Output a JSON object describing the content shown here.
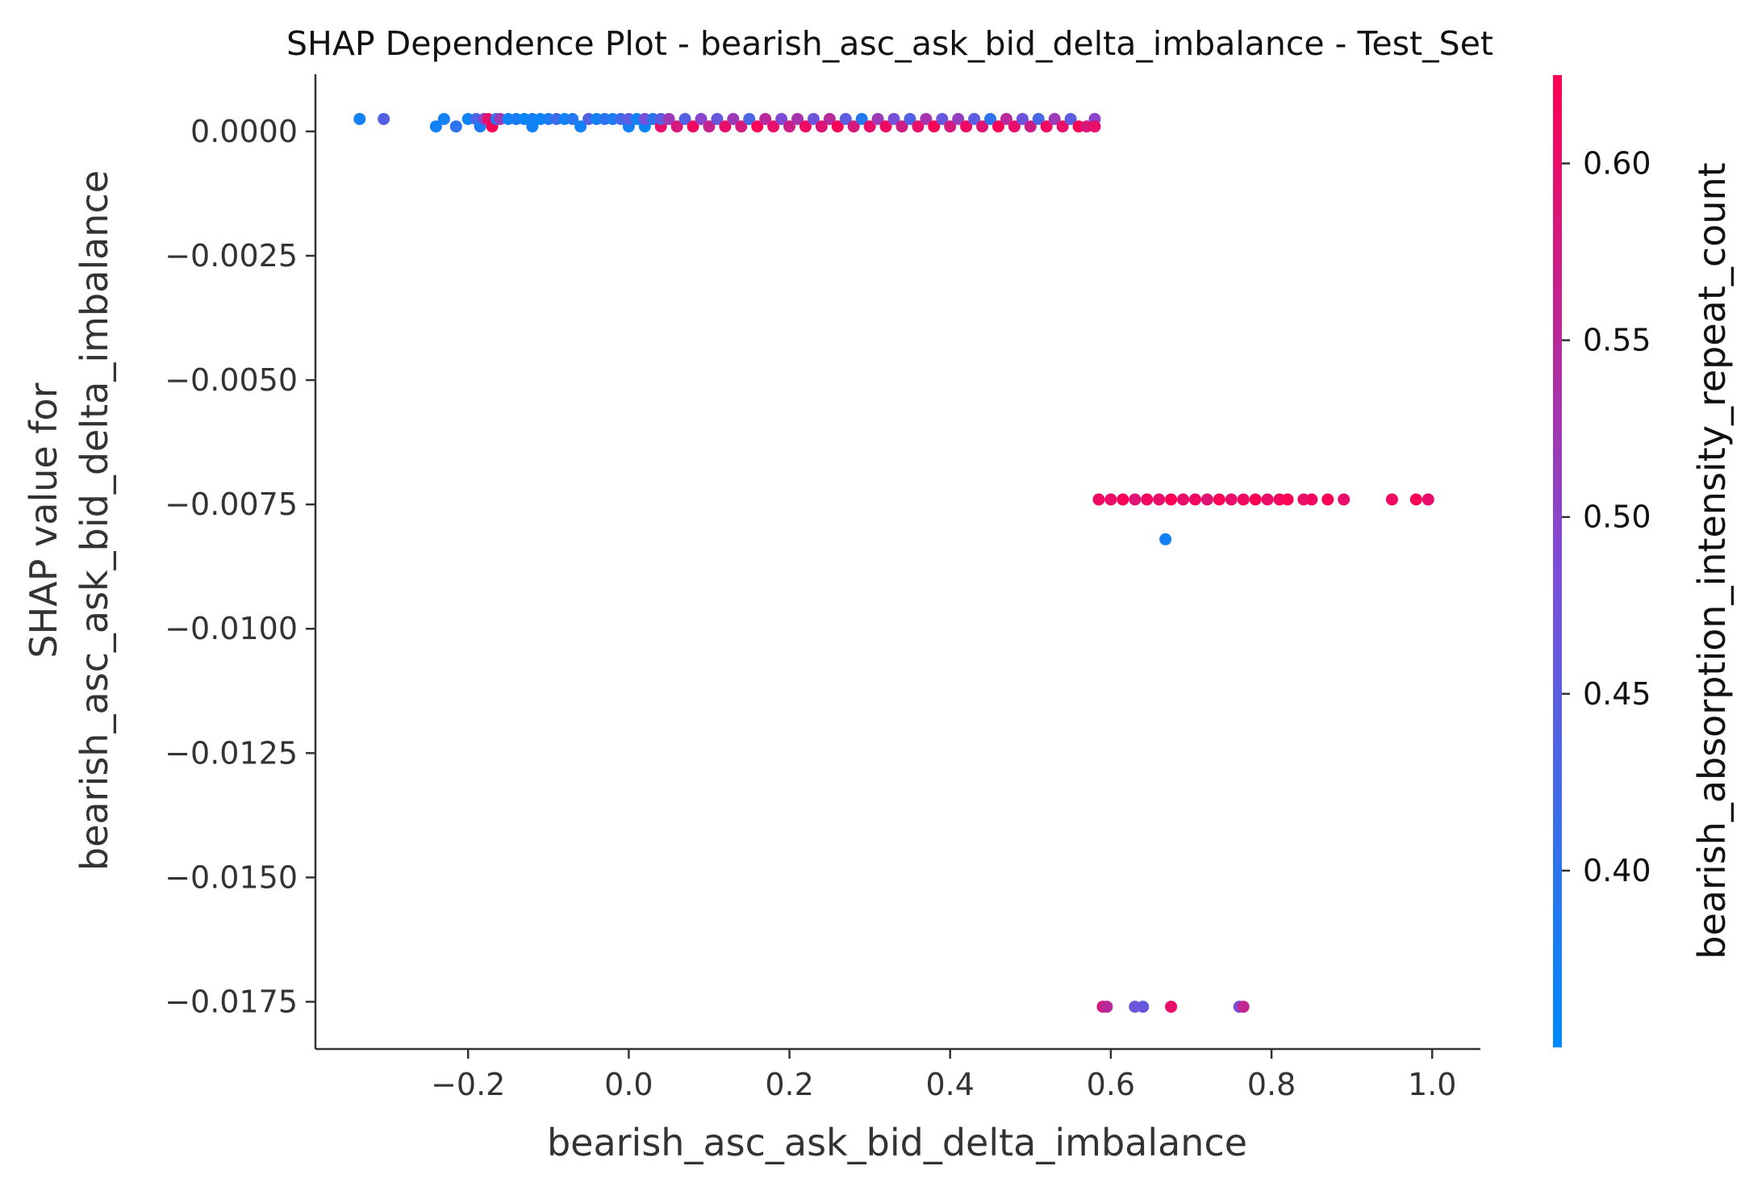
{
  "chart_data": {
    "type": "scatter",
    "title": "SHAP Dependence Plot - bearish_asc_ask_bid_delta_imbalance - Test_Set",
    "xlabel": "bearish_asc_ask_bid_delta_imbalance",
    "ylabel_lines": [
      "SHAP value for",
      "bearish_asc_ask_bid_delta_imbalance"
    ],
    "xlim": [
      -0.39,
      1.06
    ],
    "ylim": [
      -0.01845,
      0.00115
    ],
    "x_ticks": [
      -0.2,
      0.0,
      0.2,
      0.4,
      0.6,
      0.8,
      1.0
    ],
    "x_tick_labels": [
      "−0.2",
      "0.0",
      "0.2",
      "0.4",
      "0.6",
      "0.8",
      "1.0"
    ],
    "y_ticks": [
      0.0,
      -0.0025,
      -0.005,
      -0.0075,
      -0.01,
      -0.0125,
      -0.015,
      -0.0175
    ],
    "y_tick_labels": [
      "0.0000",
      "−0.0025",
      "−0.0050",
      "−0.0075",
      "−0.0100",
      "−0.0125",
      "−0.0150",
      "−0.0175"
    ],
    "grid": false,
    "colorbar": {
      "label": "bearish_absorption_intensity_repeat_count",
      "range": [
        0.35,
        0.625
      ],
      "ticks": [
        0.4,
        0.45,
        0.5,
        0.55,
        0.6
      ],
      "tick_labels": [
        "0.40",
        "0.45",
        "0.50",
        "0.55",
        "0.60"
      ],
      "color_low": "#008afb",
      "color_mid": "#7e4cd6",
      "color_high": "#ff0052"
    },
    "series": [
      {
        "points": [
          {
            "x": -0.335,
            "y": 0.00025,
            "c": 0.37
          },
          {
            "x": -0.305,
            "y": 0.00025,
            "c": 0.44
          },
          {
            "x": -0.24,
            "y": 0.0001,
            "c": 0.37
          },
          {
            "x": -0.23,
            "y": 0.00025,
            "c": 0.37
          },
          {
            "x": -0.215,
            "y": 0.0001,
            "c": 0.4
          },
          {
            "x": -0.2,
            "y": 0.00025,
            "c": 0.36
          },
          {
            "x": -0.19,
            "y": 0.00025,
            "c": 0.43
          },
          {
            "x": -0.185,
            "y": 0.0001,
            "c": 0.38
          },
          {
            "x": -0.18,
            "y": 0.00025,
            "c": 0.5
          },
          {
            "x": -0.175,
            "y": 0.00025,
            "c": 0.6
          },
          {
            "x": -0.17,
            "y": 0.0001,
            "c": 0.62
          },
          {
            "x": -0.165,
            "y": 0.00025,
            "c": 0.4
          },
          {
            "x": -0.16,
            "y": 0.00025,
            "c": 0.52
          },
          {
            "x": -0.15,
            "y": 0.00025,
            "c": 0.37
          },
          {
            "x": -0.14,
            "y": 0.00025,
            "c": 0.38
          },
          {
            "x": -0.13,
            "y": 0.00025,
            "c": 0.36
          },
          {
            "x": -0.12,
            "y": 0.00025,
            "c": 0.37
          },
          {
            "x": -0.12,
            "y": 0.0001,
            "c": 0.37
          },
          {
            "x": -0.11,
            "y": 0.00025,
            "c": 0.36
          },
          {
            "x": -0.1,
            "y": 0.00025,
            "c": 0.38
          },
          {
            "x": -0.09,
            "y": 0.00025,
            "c": 0.42
          },
          {
            "x": -0.08,
            "y": 0.00025,
            "c": 0.37
          },
          {
            "x": -0.07,
            "y": 0.00025,
            "c": 0.39
          },
          {
            "x": -0.06,
            "y": 0.0001,
            "c": 0.37
          },
          {
            "x": -0.05,
            "y": 0.00025,
            "c": 0.44
          },
          {
            "x": -0.04,
            "y": 0.00025,
            "c": 0.37
          },
          {
            "x": -0.03,
            "y": 0.00025,
            "c": 0.4
          },
          {
            "x": -0.02,
            "y": 0.00025,
            "c": 0.38
          },
          {
            "x": -0.01,
            "y": 0.00025,
            "c": 0.42
          },
          {
            "x": 0.0,
            "y": 0.0001,
            "c": 0.37
          },
          {
            "x": 0.0,
            "y": 0.00025,
            "c": 0.45
          },
          {
            "x": 0.01,
            "y": 0.00025,
            "c": 0.37
          },
          {
            "x": 0.02,
            "y": 0.0001,
            "c": 0.36
          },
          {
            "x": 0.02,
            "y": 0.00025,
            "c": 0.48
          },
          {
            "x": 0.03,
            "y": 0.00025,
            "c": 0.4
          },
          {
            "x": 0.04,
            "y": 0.0001,
            "c": 0.6
          },
          {
            "x": 0.04,
            "y": 0.00025,
            "c": 0.45
          },
          {
            "x": 0.05,
            "y": 0.00025,
            "c": 0.52
          },
          {
            "x": 0.06,
            "y": 0.0001,
            "c": 0.58
          },
          {
            "x": 0.07,
            "y": 0.00025,
            "c": 0.44
          },
          {
            "x": 0.08,
            "y": 0.0001,
            "c": 0.61
          },
          {
            "x": 0.09,
            "y": 0.00025,
            "c": 0.5
          },
          {
            "x": 0.1,
            "y": 0.0001,
            "c": 0.56
          },
          {
            "x": 0.11,
            "y": 0.00025,
            "c": 0.46
          },
          {
            "x": 0.12,
            "y": 0.0001,
            "c": 0.6
          },
          {
            "x": 0.13,
            "y": 0.00025,
            "c": 0.52
          },
          {
            "x": 0.14,
            "y": 0.0001,
            "c": 0.58
          },
          {
            "x": 0.15,
            "y": 0.00025,
            "c": 0.43
          },
          {
            "x": 0.16,
            "y": 0.0001,
            "c": 0.62
          },
          {
            "x": 0.17,
            "y": 0.00025,
            "c": 0.55
          },
          {
            "x": 0.18,
            "y": 0.0001,
            "c": 0.6
          },
          {
            "x": 0.19,
            "y": 0.00025,
            "c": 0.49
          },
          {
            "x": 0.2,
            "y": 0.0001,
            "c": 0.57
          },
          {
            "x": 0.21,
            "y": 0.00025,
            "c": 0.53
          },
          {
            "x": 0.22,
            "y": 0.0001,
            "c": 0.61
          },
          {
            "x": 0.23,
            "y": 0.00025,
            "c": 0.47
          },
          {
            "x": 0.24,
            "y": 0.0001,
            "c": 0.59
          },
          {
            "x": 0.25,
            "y": 0.00025,
            "c": 0.55
          },
          {
            "x": 0.26,
            "y": 0.0001,
            "c": 0.62
          },
          {
            "x": 0.27,
            "y": 0.00025,
            "c": 0.45
          },
          {
            "x": 0.28,
            "y": 0.0001,
            "c": 0.58
          },
          {
            "x": 0.29,
            "y": 0.00025,
            "c": 0.39
          },
          {
            "x": 0.3,
            "y": 0.0001,
            "c": 0.6
          },
          {
            "x": 0.31,
            "y": 0.00025,
            "c": 0.52
          },
          {
            "x": 0.32,
            "y": 0.0001,
            "c": 0.61
          },
          {
            "x": 0.33,
            "y": 0.00025,
            "c": 0.48
          },
          {
            "x": 0.34,
            "y": 0.0001,
            "c": 0.57
          },
          {
            "x": 0.35,
            "y": 0.00025,
            "c": 0.44
          },
          {
            "x": 0.36,
            "y": 0.0001,
            "c": 0.6
          },
          {
            "x": 0.37,
            "y": 0.00025,
            "c": 0.53
          },
          {
            "x": 0.38,
            "y": 0.0001,
            "c": 0.62
          },
          {
            "x": 0.39,
            "y": 0.00025,
            "c": 0.46
          },
          {
            "x": 0.4,
            "y": 0.0001,
            "c": 0.58
          },
          {
            "x": 0.41,
            "y": 0.00025,
            "c": 0.51
          },
          {
            "x": 0.42,
            "y": 0.0001,
            "c": 0.61
          },
          {
            "x": 0.43,
            "y": 0.00025,
            "c": 0.45
          },
          {
            "x": 0.44,
            "y": 0.0001,
            "c": 0.59
          },
          {
            "x": 0.45,
            "y": 0.00025,
            "c": 0.4
          },
          {
            "x": 0.46,
            "y": 0.0001,
            "c": 0.62
          },
          {
            "x": 0.47,
            "y": 0.00025,
            "c": 0.55
          },
          {
            "x": 0.48,
            "y": 0.0001,
            "c": 0.6
          },
          {
            "x": 0.49,
            "y": 0.00025,
            "c": 0.47
          },
          {
            "x": 0.5,
            "y": 0.0001,
            "c": 0.57
          },
          {
            "x": 0.51,
            "y": 0.00025,
            "c": 0.43
          },
          {
            "x": 0.52,
            "y": 0.0001,
            "c": 0.61
          },
          {
            "x": 0.53,
            "y": 0.00025,
            "c": 0.52
          },
          {
            "x": 0.54,
            "y": 0.0001,
            "c": 0.6
          },
          {
            "x": 0.55,
            "y": 0.00025,
            "c": 0.45
          },
          {
            "x": 0.56,
            "y": 0.0001,
            "c": 0.62
          },
          {
            "x": 0.57,
            "y": 0.0001,
            "c": 0.58
          },
          {
            "x": 0.58,
            "y": 0.00025,
            "c": 0.5
          },
          {
            "x": 0.58,
            "y": 0.0001,
            "c": 0.6
          },
          {
            "x": 0.585,
            "y": -0.0074,
            "c": 0.61
          },
          {
            "x": 0.6,
            "y": -0.0074,
            "c": 0.6
          },
          {
            "x": 0.615,
            "y": -0.0074,
            "c": 0.62
          },
          {
            "x": 0.63,
            "y": -0.0074,
            "c": 0.59
          },
          {
            "x": 0.645,
            "y": -0.0074,
            "c": 0.61
          },
          {
            "x": 0.66,
            "y": -0.0074,
            "c": 0.6
          },
          {
            "x": 0.675,
            "y": -0.0074,
            "c": 0.62
          },
          {
            "x": 0.69,
            "y": -0.0074,
            "c": 0.6
          },
          {
            "x": 0.705,
            "y": -0.0074,
            "c": 0.61
          },
          {
            "x": 0.72,
            "y": -0.0074,
            "c": 0.59
          },
          {
            "x": 0.735,
            "y": -0.0074,
            "c": 0.62
          },
          {
            "x": 0.75,
            "y": -0.0074,
            "c": 0.6
          },
          {
            "x": 0.765,
            "y": -0.0074,
            "c": 0.61
          },
          {
            "x": 0.78,
            "y": -0.0074,
            "c": 0.62
          },
          {
            "x": 0.795,
            "y": -0.0074,
            "c": 0.6
          },
          {
            "x": 0.81,
            "y": -0.0074,
            "c": 0.61
          },
          {
            "x": 0.82,
            "y": -0.0074,
            "c": 0.62
          },
          {
            "x": 0.84,
            "y": -0.0074,
            "c": 0.6
          },
          {
            "x": 0.85,
            "y": -0.0074,
            "c": 0.61
          },
          {
            "x": 0.87,
            "y": -0.0074,
            "c": 0.62
          },
          {
            "x": 0.89,
            "y": -0.0074,
            "c": 0.6
          },
          {
            "x": 0.95,
            "y": -0.0074,
            "c": 0.61
          },
          {
            "x": 0.98,
            "y": -0.0074,
            "c": 0.62
          },
          {
            "x": 0.995,
            "y": -0.0074,
            "c": 0.6
          },
          {
            "x": 0.668,
            "y": -0.0082,
            "c": 0.37
          },
          {
            "x": 0.59,
            "y": -0.0176,
            "c": 0.58
          },
          {
            "x": 0.595,
            "y": -0.0176,
            "c": 0.55
          },
          {
            "x": 0.63,
            "y": -0.0176,
            "c": 0.47
          },
          {
            "x": 0.64,
            "y": -0.0176,
            "c": 0.46
          },
          {
            "x": 0.675,
            "y": -0.0176,
            "c": 0.6
          },
          {
            "x": 0.76,
            "y": -0.0176,
            "c": 0.48
          },
          {
            "x": 0.765,
            "y": -0.0176,
            "c": 0.56
          }
        ]
      }
    ]
  }
}
